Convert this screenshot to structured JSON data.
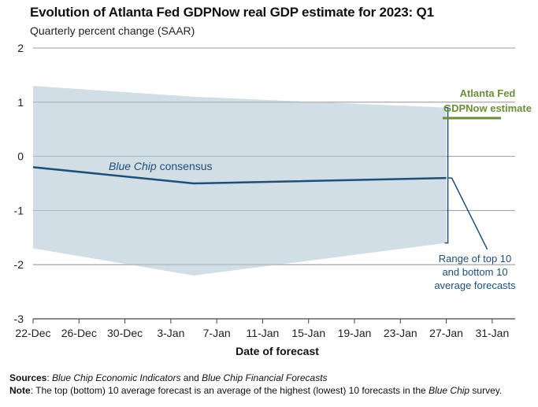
{
  "chart_data": {
    "type": "area",
    "title": "Evolution of Atlanta Fed GDPNow real GDP estimate for 2023: Q1",
    "subtitle": "Quarterly percent change (SAAR)",
    "xlabel": "Date of forecast",
    "ylabel": "",
    "ylim": [
      -3,
      2
    ],
    "yticks": [
      "-3",
      "-2",
      "-1",
      "0",
      "1",
      "2"
    ],
    "ytick_values": [
      -3,
      -2,
      -1,
      0,
      1,
      2
    ],
    "xlim_days": [
      0,
      42
    ],
    "xticks": [
      "22-Dec",
      "26-Dec",
      "30-Dec",
      "3-Jan",
      "7-Jan",
      "11-Jan",
      "15-Jan",
      "19-Jan",
      "23-Jan",
      "27-Jan",
      "31-Jan"
    ],
    "xtick_days": [
      0,
      4,
      8,
      12,
      16,
      20,
      24,
      28,
      32,
      36,
      40
    ],
    "grid": true,
    "range_band": {
      "name": "Range of top 10 and bottom 10 average forecasts",
      "x_days": [
        0,
        14,
        36
      ],
      "upper": [
        1.3,
        1.1,
        0.9
      ],
      "lower": [
        -1.7,
        -2.2,
        -1.6
      ]
    },
    "series": [
      {
        "name": "Blue Chip consensus",
        "x_days": [
          0,
          14,
          36
        ],
        "values": [
          -0.2,
          -0.5,
          -0.4
        ]
      },
      {
        "name": "Atlanta Fed GDPNow estimate",
        "x_days": [],
        "values": []
      }
    ],
    "annotations": {
      "blue_chip_label_italic": "Blue Chip",
      "blue_chip_label_rest": " consensus",
      "gdpnow_line1": "Atlanta Fed",
      "gdpnow_line2": "GDPNow estimate",
      "range_line1": "Range of top 10",
      "range_line2": "and bottom 10",
      "range_line3": "average forecasts"
    },
    "colors": {
      "band": "#c9d8e1",
      "line": "#1f4e79",
      "gdpnow": "#6b8e3a",
      "grid": "#9e9e9e"
    }
  },
  "footer": {
    "sources_label": "Sources",
    "sources_sep": ": ",
    "sources_src1": "Blue Chip Economic Indicators",
    "sources_and": " and ",
    "sources_src2": "Blue Chip Financial Forecasts",
    "note_label": "Note",
    "note_text1": ": The top (bottom) 10 average forecast is an average of the highest (lowest) 10 forecasts in the ",
    "note_italic": "Blue Chip",
    "note_text2": " survey."
  }
}
